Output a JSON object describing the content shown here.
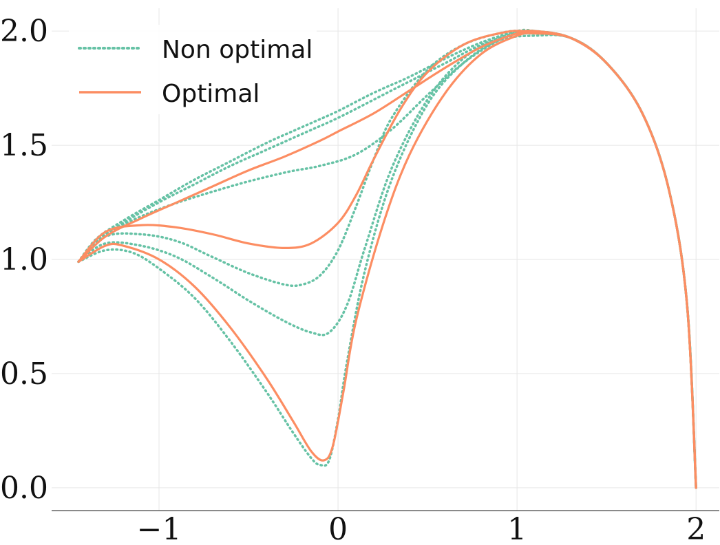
{
  "chart_data": {
    "type": "line",
    "title": "",
    "xlabel": "",
    "ylabel": "",
    "xlim": [
      -1.6,
      2.13
    ],
    "ylim": [
      -0.1,
      2.1
    ],
    "xticks": [
      -1,
      0,
      1,
      2
    ],
    "yticks": [
      0.0,
      0.5,
      1.0,
      1.5,
      2.0
    ],
    "xtick_labels": [
      "−1",
      "0",
      "1",
      "2"
    ],
    "ytick_labels": [
      "0.0",
      "0.5",
      "1.0",
      "1.5",
      "2.0"
    ],
    "grid": true,
    "legend": {
      "placement": "top-left",
      "entries": [
        {
          "label": "Non optimal",
          "style": "dotted",
          "color": "#66c2a5"
        },
        {
          "label": "Optimal",
          "style": "solid",
          "color": "#fc8d62"
        }
      ]
    },
    "series": [
      {
        "group": "Non optimal",
        "color": "#66c2a5",
        "style": "dotted",
        "points": [
          [
            -1.45,
            0.99
          ],
          [
            -1.35,
            1.09
          ],
          [
            -1.2,
            1.17
          ],
          [
            -1.0,
            1.26
          ],
          [
            -0.8,
            1.35
          ],
          [
            -0.6,
            1.43
          ],
          [
            -0.4,
            1.51
          ],
          [
            -0.2,
            1.58
          ],
          [
            0.0,
            1.65
          ],
          [
            0.2,
            1.73
          ],
          [
            0.4,
            1.8
          ],
          [
            0.6,
            1.88
          ],
          [
            0.8,
            1.95
          ],
          [
            1.0,
            2.0
          ],
          [
            1.1,
            2.0
          ],
          [
            1.3,
            1.97
          ],
          [
            1.5,
            1.86
          ],
          [
            1.7,
            1.64
          ],
          [
            1.85,
            1.3
          ],
          [
            1.95,
            0.8
          ],
          [
            2.0,
            0.0
          ]
        ]
      },
      {
        "group": "Non optimal",
        "color": "#66c2a5",
        "style": "dotted",
        "points": [
          [
            -1.45,
            0.99
          ],
          [
            -1.35,
            1.08
          ],
          [
            -1.2,
            1.16
          ],
          [
            -1.0,
            1.25
          ],
          [
            -0.8,
            1.33
          ],
          [
            -0.6,
            1.41
          ],
          [
            -0.4,
            1.48
          ],
          [
            -0.2,
            1.55
          ],
          [
            0.0,
            1.62
          ],
          [
            0.2,
            1.7
          ],
          [
            0.4,
            1.78
          ],
          [
            0.6,
            1.86
          ],
          [
            0.8,
            1.94
          ],
          [
            1.0,
            1.99
          ],
          [
            1.1,
            2.0
          ],
          [
            1.3,
            1.97
          ],
          [
            1.5,
            1.86
          ],
          [
            1.7,
            1.64
          ],
          [
            1.85,
            1.3
          ],
          [
            1.95,
            0.8
          ],
          [
            2.0,
            0.0
          ]
        ]
      },
      {
        "group": "Non optimal",
        "color": "#66c2a5",
        "style": "dotted",
        "points": [
          [
            -1.45,
            0.99
          ],
          [
            -1.3,
            1.11
          ],
          [
            -1.0,
            1.22
          ],
          [
            -0.6,
            1.32
          ],
          [
            -0.3,
            1.38
          ],
          [
            -0.1,
            1.41
          ],
          [
            0.1,
            1.46
          ],
          [
            0.3,
            1.57
          ],
          [
            0.5,
            1.72
          ],
          [
            0.7,
            1.86
          ],
          [
            0.9,
            1.96
          ],
          [
            1.05,
            2.0
          ],
          [
            1.3,
            1.97
          ],
          [
            1.5,
            1.86
          ],
          [
            1.7,
            1.64
          ],
          [
            1.85,
            1.3
          ],
          [
            1.95,
            0.8
          ],
          [
            2.0,
            0.0
          ]
        ]
      },
      {
        "group": "Non optimal",
        "color": "#66c2a5",
        "style": "dotted",
        "points": [
          [
            -1.45,
            0.99
          ],
          [
            -1.3,
            1.1
          ],
          [
            -1.1,
            1.11
          ],
          [
            -0.9,
            1.08
          ],
          [
            -0.7,
            1.01
          ],
          [
            -0.5,
            0.94
          ],
          [
            -0.3,
            0.89
          ],
          [
            -0.2,
            0.89
          ],
          [
            -0.1,
            0.93
          ],
          [
            0.0,
            1.04
          ],
          [
            0.1,
            1.23
          ],
          [
            0.2,
            1.44
          ],
          [
            0.3,
            1.62
          ],
          [
            0.5,
            1.83
          ],
          [
            0.7,
            1.94
          ],
          [
            0.9,
            1.99
          ],
          [
            1.05,
            2.0
          ],
          [
            1.3,
            1.97
          ],
          [
            1.5,
            1.86
          ],
          [
            1.7,
            1.64
          ],
          [
            1.85,
            1.3
          ],
          [
            1.95,
            0.8
          ],
          [
            2.0,
            0.0
          ]
        ]
      },
      {
        "group": "Non optimal",
        "color": "#66c2a5",
        "style": "dotted",
        "points": [
          [
            -1.45,
            0.99
          ],
          [
            -1.3,
            1.07
          ],
          [
            -1.1,
            1.06
          ],
          [
            -0.9,
            1.01
          ],
          [
            -0.7,
            0.92
          ],
          [
            -0.5,
            0.82
          ],
          [
            -0.3,
            0.73
          ],
          [
            -0.15,
            0.68
          ],
          [
            -0.05,
            0.68
          ],
          [
            0.05,
            0.8
          ],
          [
            0.15,
            1.05
          ],
          [
            0.3,
            1.4
          ],
          [
            0.5,
            1.7
          ],
          [
            0.7,
            1.88
          ],
          [
            0.9,
            1.97
          ],
          [
            1.05,
            1.99
          ],
          [
            1.3,
            1.97
          ],
          [
            1.5,
            1.86
          ],
          [
            1.7,
            1.64
          ],
          [
            1.85,
            1.3
          ],
          [
            1.95,
            0.8
          ],
          [
            2.0,
            0.0
          ]
        ]
      },
      {
        "group": "Non optimal",
        "color": "#66c2a5",
        "style": "dotted",
        "points": [
          [
            -1.45,
            0.99
          ],
          [
            -1.3,
            1.04
          ],
          [
            -1.15,
            1.03
          ],
          [
            -1.0,
            0.96
          ],
          [
            -0.8,
            0.83
          ],
          [
            -0.6,
            0.64
          ],
          [
            -0.4,
            0.42
          ],
          [
            -0.25,
            0.24
          ],
          [
            -0.15,
            0.13
          ],
          [
            -0.1,
            0.1
          ],
          [
            -0.05,
            0.12
          ],
          [
            0.0,
            0.3
          ],
          [
            0.05,
            0.55
          ],
          [
            0.15,
            0.95
          ],
          [
            0.3,
            1.35
          ],
          [
            0.5,
            1.68
          ],
          [
            0.7,
            1.86
          ],
          [
            0.9,
            1.96
          ],
          [
            1.1,
            1.98
          ],
          [
            1.3,
            1.97
          ],
          [
            1.5,
            1.86
          ],
          [
            1.7,
            1.64
          ],
          [
            1.85,
            1.3
          ],
          [
            1.95,
            0.8
          ],
          [
            2.0,
            0.0
          ]
        ]
      },
      {
        "group": "Optimal",
        "color": "#fc8d62",
        "style": "solid",
        "points": [
          [
            -1.45,
            0.99
          ],
          [
            -1.3,
            1.1
          ],
          [
            -1.1,
            1.18
          ],
          [
            -0.9,
            1.25
          ],
          [
            -0.7,
            1.32
          ],
          [
            -0.5,
            1.39
          ],
          [
            -0.3,
            1.45
          ],
          [
            -0.1,
            1.52
          ],
          [
            0.0,
            1.56
          ],
          [
            0.2,
            1.64
          ],
          [
            0.4,
            1.74
          ],
          [
            0.6,
            1.84
          ],
          [
            0.8,
            1.93
          ],
          [
            1.0,
            1.99
          ],
          [
            1.1,
            2.0
          ],
          [
            1.3,
            1.97
          ],
          [
            1.5,
            1.86
          ],
          [
            1.7,
            1.64
          ],
          [
            1.85,
            1.3
          ],
          [
            1.95,
            0.8
          ],
          [
            2.0,
            0.0
          ]
        ]
      },
      {
        "group": "Optimal",
        "color": "#fc8d62",
        "style": "solid",
        "points": [
          [
            -1.45,
            0.99
          ],
          [
            -1.3,
            1.12
          ],
          [
            -1.1,
            1.15
          ],
          [
            -0.9,
            1.14
          ],
          [
            -0.7,
            1.11
          ],
          [
            -0.5,
            1.07
          ],
          [
            -0.3,
            1.05
          ],
          [
            -0.15,
            1.07
          ],
          [
            0.0,
            1.16
          ],
          [
            0.1,
            1.28
          ],
          [
            0.2,
            1.44
          ],
          [
            0.35,
            1.66
          ],
          [
            0.5,
            1.82
          ],
          [
            0.7,
            1.94
          ],
          [
            0.9,
            1.99
          ],
          [
            1.05,
            2.0
          ],
          [
            1.3,
            1.97
          ],
          [
            1.5,
            1.86
          ],
          [
            1.7,
            1.64
          ],
          [
            1.85,
            1.3
          ],
          [
            1.95,
            0.8
          ],
          [
            2.0,
            0.0
          ]
        ]
      },
      {
        "group": "Optimal",
        "color": "#fc8d62",
        "style": "solid",
        "points": [
          [
            -1.45,
            0.99
          ],
          [
            -1.3,
            1.06
          ],
          [
            -1.2,
            1.06
          ],
          [
            -1.0,
            1.0
          ],
          [
            -0.8,
            0.88
          ],
          [
            -0.6,
            0.7
          ],
          [
            -0.4,
            0.48
          ],
          [
            -0.25,
            0.29
          ],
          [
            -0.15,
            0.16
          ],
          [
            -0.08,
            0.12
          ],
          [
            -0.03,
            0.18
          ],
          [
            0.03,
            0.42
          ],
          [
            0.1,
            0.73
          ],
          [
            0.25,
            1.15
          ],
          [
            0.4,
            1.46
          ],
          [
            0.6,
            1.73
          ],
          [
            0.8,
            1.9
          ],
          [
            1.0,
            1.98
          ],
          [
            1.1,
            1.99
          ],
          [
            1.3,
            1.97
          ],
          [
            1.5,
            1.86
          ],
          [
            1.7,
            1.64
          ],
          [
            1.85,
            1.3
          ],
          [
            1.95,
            0.8
          ],
          [
            2.0,
            0.0
          ]
        ]
      }
    ]
  }
}
